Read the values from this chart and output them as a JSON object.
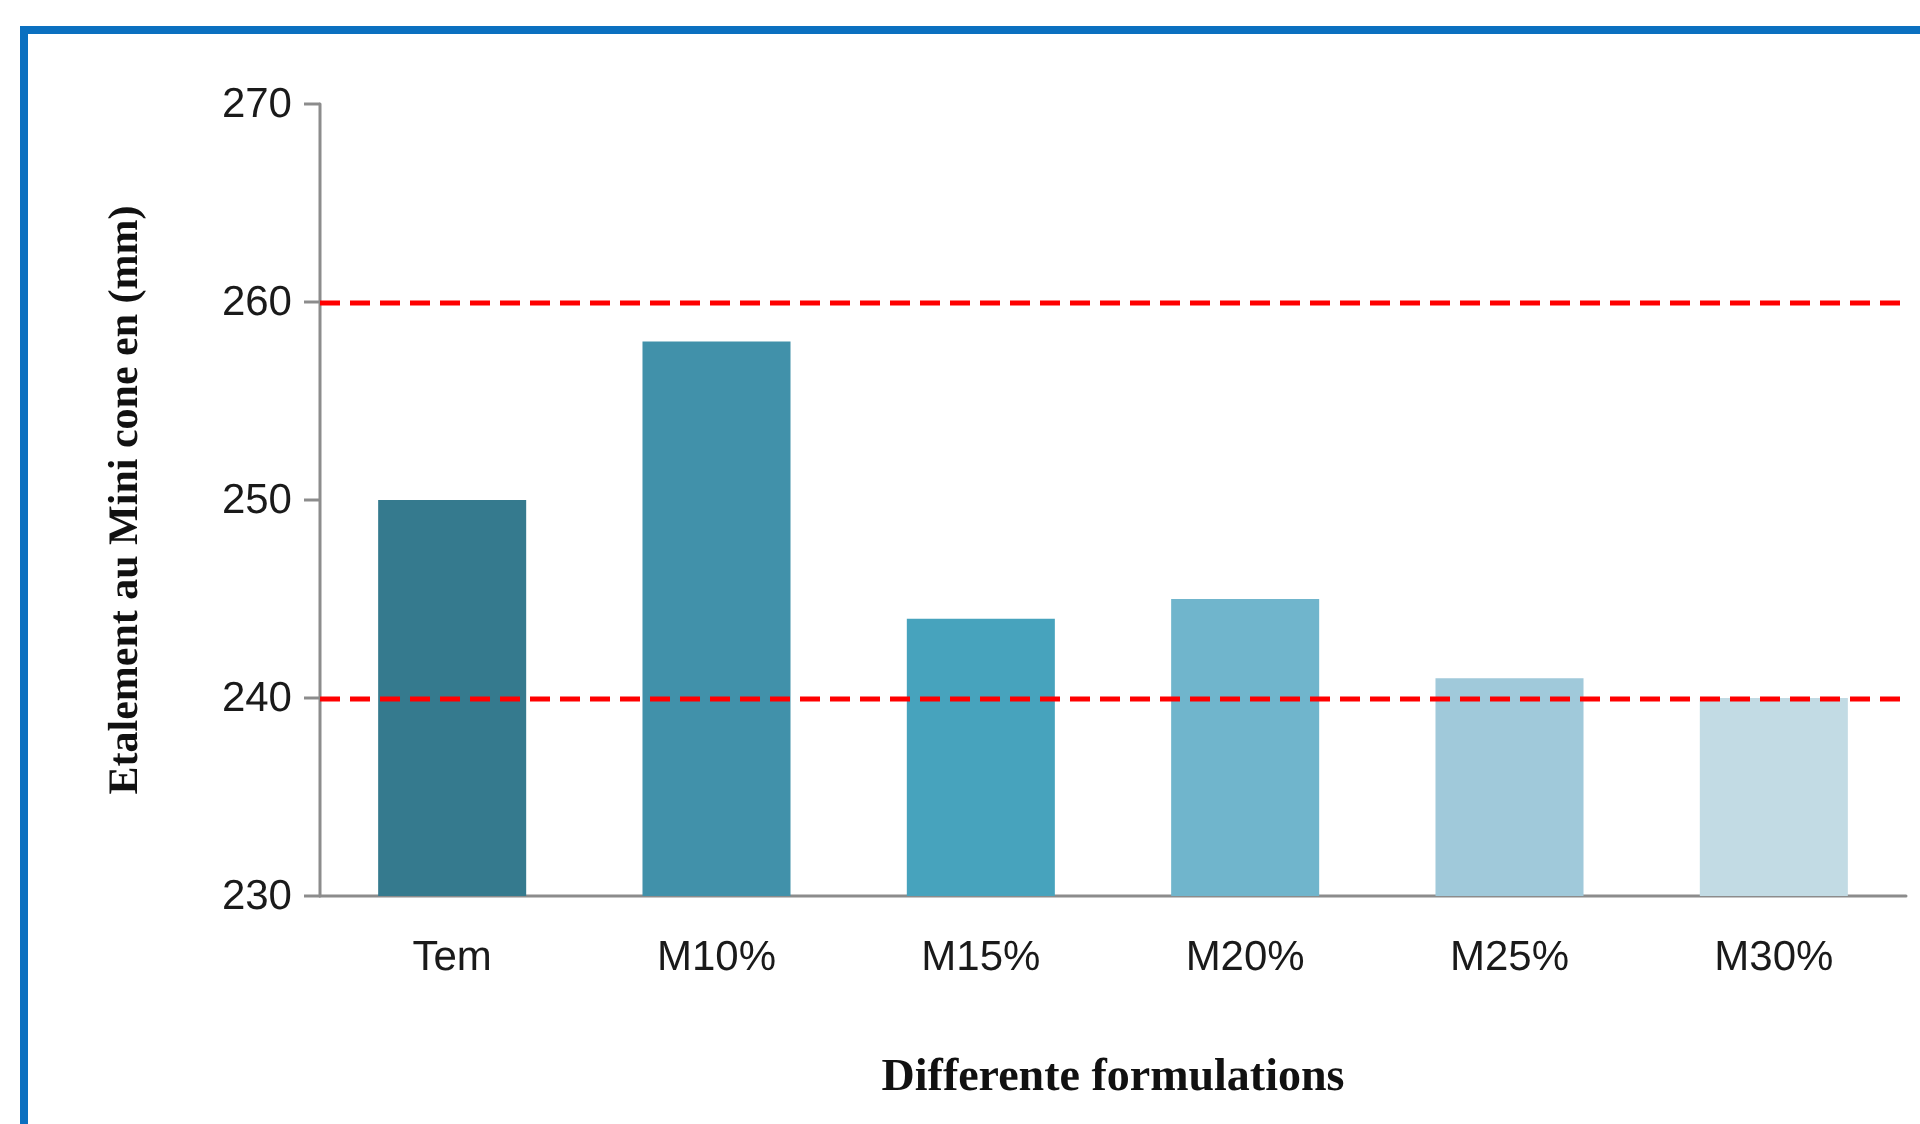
{
  "chart_data": {
    "type": "bar",
    "xlabel": "Differente formulations",
    "ylabel": "Etalement au Mini cone en (mm)",
    "categories": [
      "Tem",
      "M10%",
      "M15%",
      "M20%",
      "M25%",
      "M30%"
    ],
    "values": [
      250,
      258,
      244,
      245,
      241,
      240
    ],
    "colors": [
      "#357a8e",
      "#4191aa",
      "#47a3bd",
      "#70b5cc",
      "#a0c9da",
      "#c2dbe4"
    ],
    "ylim": [
      230,
      270
    ],
    "yticks": [
      230,
      240,
      250,
      260,
      270
    ],
    "grid": false,
    "ref_lines": [
      {
        "axis": "y",
        "value": 260,
        "color": "#ff0000",
        "line_style": "dashed"
      },
      {
        "axis": "y",
        "value": 240,
        "color": "#ff0000",
        "line_style": "dashed"
      }
    ]
  }
}
